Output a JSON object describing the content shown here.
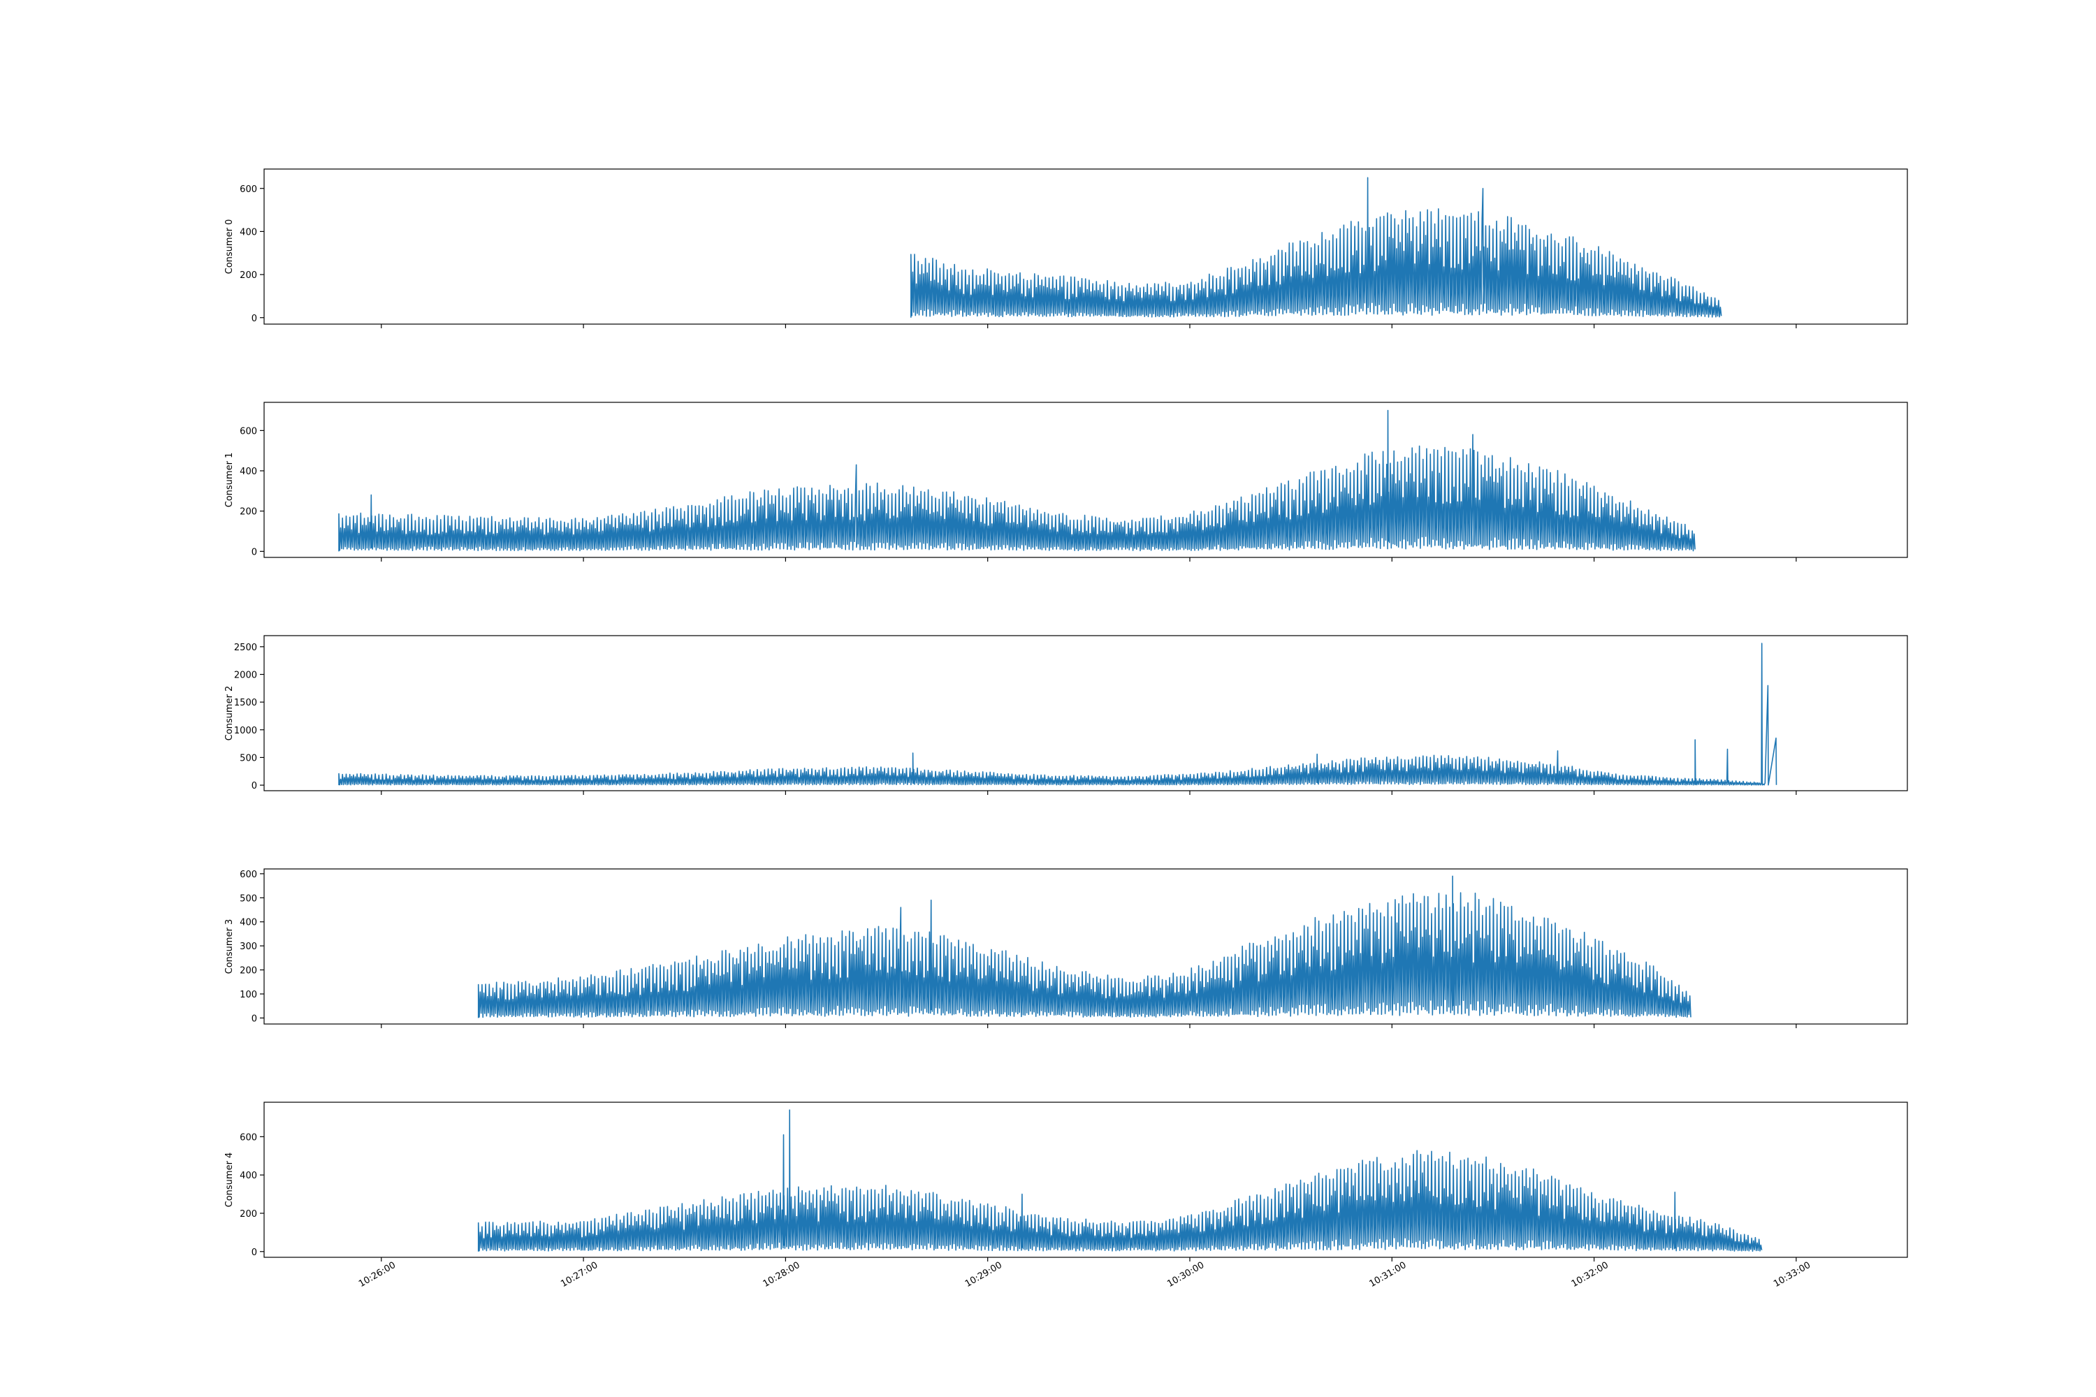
{
  "chart_data": {
    "type": "line",
    "layout": "5 stacked subplots sharing x axis",
    "color": "#1f77b4",
    "x_tick_labels": [
      "10:26:00",
      "10:27:00",
      "10:28:00",
      "10:29:00",
      "10:30:00",
      "10:31:00",
      "10:32:00",
      "10:33:00"
    ],
    "x_tick_values_min": [
      0,
      1,
      2,
      3,
      4,
      5,
      6,
      7
    ],
    "x_origin_label": "10:26:00",
    "xlim_min": [
      -0.58,
      7.55
    ],
    "x_units": "minutes after 10:26:00",
    "panels": [
      {
        "ylabel": "Consumer 0",
        "ylim": [
          -30,
          690
        ],
        "yticks": [
          0,
          200,
          400,
          600
        ],
        "x_range": [
          2.62,
          6.63
        ],
        "envelope": [
          [
            2.62,
            300
          ],
          [
            2.9,
            230
          ],
          [
            3.2,
            200
          ],
          [
            3.5,
            180
          ],
          [
            3.75,
            150
          ],
          [
            4.0,
            170
          ],
          [
            4.3,
            260
          ],
          [
            4.6,
            380
          ],
          [
            4.9,
            470
          ],
          [
            5.15,
            500
          ],
          [
            5.4,
            490
          ],
          [
            5.7,
            430
          ],
          [
            6.0,
            330
          ],
          [
            6.3,
            220
          ],
          [
            6.63,
            80
          ]
        ],
        "spikes": [
          [
            4.88,
            650
          ],
          [
            5.45,
            600
          ]
        ]
      },
      {
        "ylabel": "Consumer 1",
        "ylim": [
          -30,
          740
        ],
        "yticks": [
          0,
          200,
          400,
          600
        ],
        "x_range": [
          -0.21,
          6.5
        ],
        "envelope": [
          [
            -0.21,
            190
          ],
          [
            0.5,
            170
          ],
          [
            1.0,
            160
          ],
          [
            1.4,
            210
          ],
          [
            1.8,
            290
          ],
          [
            2.2,
            330
          ],
          [
            2.5,
            330
          ],
          [
            2.8,
            300
          ],
          [
            3.1,
            240
          ],
          [
            3.4,
            180
          ],
          [
            3.75,
            160
          ],
          [
            4.0,
            190
          ],
          [
            4.3,
            280
          ],
          [
            4.65,
            400
          ],
          [
            4.95,
            500
          ],
          [
            5.2,
            520
          ],
          [
            5.5,
            480
          ],
          [
            5.8,
            400
          ],
          [
            6.1,
            280
          ],
          [
            6.5,
            110
          ]
        ],
        "spikes": [
          [
            -0.05,
            280
          ],
          [
            2.35,
            430
          ],
          [
            4.98,
            700
          ],
          [
            5.4,
            580
          ]
        ]
      },
      {
        "ylabel": "Consumer 2",
        "ylim": [
          -100,
          2700
        ],
        "yticks": [
          0,
          500,
          1000,
          1500,
          2000,
          2500
        ],
        "x_range": [
          -0.21,
          6.85
        ],
        "envelope": [
          [
            -0.21,
            210
          ],
          [
            0.5,
            170
          ],
          [
            1.0,
            170
          ],
          [
            1.5,
            220
          ],
          [
            2.0,
            300
          ],
          [
            2.5,
            330
          ],
          [
            2.9,
            250
          ],
          [
            3.3,
            180
          ],
          [
            3.7,
            160
          ],
          [
            4.1,
            220
          ],
          [
            4.5,
            370
          ],
          [
            5.0,
            530
          ],
          [
            5.4,
            520
          ],
          [
            5.8,
            400
          ],
          [
            6.1,
            200
          ],
          [
            6.45,
            120
          ],
          [
            6.6,
            110
          ],
          [
            6.85,
            40
          ]
        ],
        "spikes": [
          [
            2.63,
            580
          ],
          [
            4.63,
            560
          ],
          [
            5.82,
            620
          ],
          [
            6.5,
            820
          ],
          [
            6.66,
            650
          ],
          [
            6.83,
            2560
          ],
          [
            6.86,
            1800
          ],
          [
            6.9,
            850
          ]
        ]
      },
      {
        "ylabel": "Consumer 3",
        "ylim": [
          -25,
          620
        ],
        "yticks": [
          0,
          100,
          200,
          300,
          400,
          500,
          600
        ],
        "x_range": [
          0.48,
          6.48
        ],
        "envelope": [
          [
            0.48,
            140
          ],
          [
            1.0,
            170
          ],
          [
            1.5,
            240
          ],
          [
            2.0,
            330
          ],
          [
            2.5,
            380
          ],
          [
            2.9,
            320
          ],
          [
            3.3,
            220
          ],
          [
            3.7,
            160
          ],
          [
            4.0,
            200
          ],
          [
            4.4,
            340
          ],
          [
            4.8,
            460
          ],
          [
            5.1,
            510
          ],
          [
            5.4,
            510
          ],
          [
            5.7,
            440
          ],
          [
            6.0,
            330
          ],
          [
            6.3,
            210
          ],
          [
            6.48,
            100
          ]
        ],
        "spikes": [
          [
            2.72,
            490
          ],
          [
            2.57,
            460
          ],
          [
            5.3,
            590
          ]
        ]
      },
      {
        "ylabel": "Consumer 4",
        "ylim": [
          -30,
          780
        ],
        "yticks": [
          0,
          200,
          400,
          600
        ],
        "x_range": [
          0.48,
          6.83
        ],
        "envelope": [
          [
            0.48,
            150
          ],
          [
            1.0,
            160
          ],
          [
            1.5,
            250
          ],
          [
            2.0,
            330
          ],
          [
            2.5,
            340
          ],
          [
            2.9,
            270
          ],
          [
            3.3,
            180
          ],
          [
            3.7,
            150
          ],
          [
            4.0,
            190
          ],
          [
            4.4,
            320
          ],
          [
            4.8,
            460
          ],
          [
            5.1,
            520
          ],
          [
            5.4,
            500
          ],
          [
            5.7,
            420
          ],
          [
            6.0,
            300
          ],
          [
            6.35,
            200
          ],
          [
            6.6,
            150
          ],
          [
            6.83,
            60
          ]
        ],
        "spikes": [
          [
            2.02,
            740
          ],
          [
            1.99,
            610
          ],
          [
            6.4,
            310
          ],
          [
            3.17,
            300
          ]
        ]
      }
    ]
  }
}
